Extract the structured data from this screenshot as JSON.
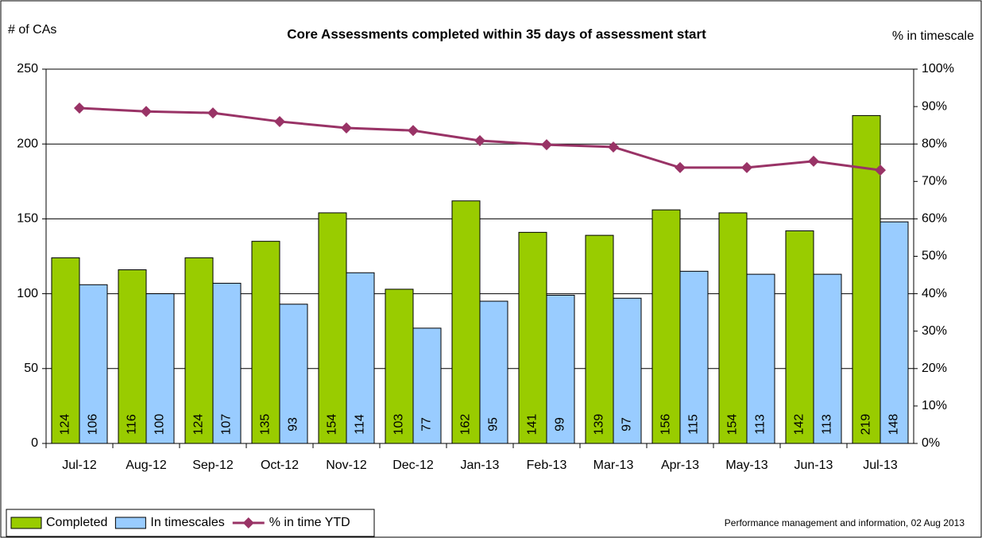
{
  "chart_data": {
    "type": "bar_line",
    "title": "Core Assessments completed within 35 days of assessment start",
    "y_label": "# of CAs",
    "y2_label": "% in timescale",
    "note": "Performance management and information, 02 Aug 2013",
    "categories": [
      "Jul-12",
      "Aug-12",
      "Sep-12",
      "Oct-12",
      "Nov-12",
      "Dec-12",
      "Jan-13",
      "Feb-13",
      "Mar-13",
      "Apr-13",
      "May-13",
      "Jun-13",
      "Jul-13"
    ],
    "series": [
      {
        "name": "Completed",
        "type": "bar",
        "color": "#99cc00",
        "values": [
          124,
          116,
          124,
          135,
          154,
          103,
          162,
          141,
          139,
          156,
          154,
          142,
          219
        ]
      },
      {
        "name": "In timescales",
        "type": "bar",
        "color": "#99ccff",
        "values": [
          106,
          100,
          107,
          93,
          114,
          77,
          95,
          99,
          97,
          115,
          113,
          113,
          148
        ]
      },
      {
        "name": "% in time YTD",
        "type": "line",
        "axis": "y2",
        "color": "#993366",
        "values": [
          89.6,
          88.7,
          88.3,
          86,
          84.3,
          83.6,
          80.9,
          79.8,
          79.2,
          73.7,
          73.7,
          75.4,
          73
        ]
      }
    ],
    "ylim": [
      0,
      250
    ],
    "yticks": [
      0,
      50,
      100,
      150,
      200,
      250
    ],
    "y2lim": [
      0,
      100
    ],
    "y2ticks": [
      {
        "value": 0,
        "label": "0%"
      },
      {
        "value": 10,
        "label": "10%"
      },
      {
        "value": 20,
        "label": "20%"
      },
      {
        "value": 30,
        "label": "30%"
      },
      {
        "value": 40,
        "label": "40%"
      },
      {
        "value": 50,
        "label": "50%"
      },
      {
        "value": 60,
        "label": "60%"
      },
      {
        "value": 70,
        "label": "70%"
      },
      {
        "value": 80,
        "label": "80%"
      },
      {
        "value": 90,
        "label": "90%"
      },
      {
        "value": 100,
        "label": "100%"
      }
    ],
    "grid": true
  }
}
